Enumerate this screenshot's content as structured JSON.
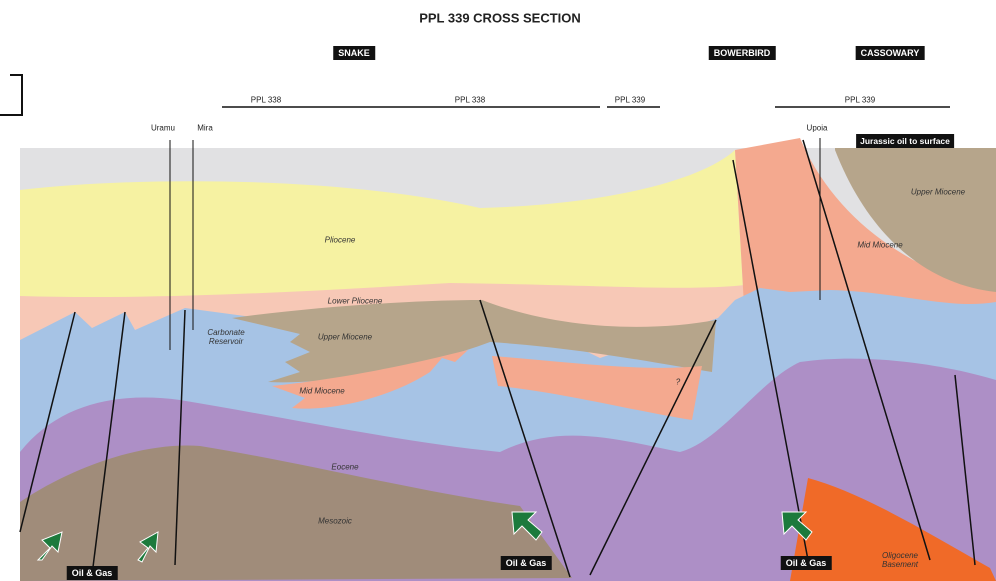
{
  "title": "PPL 339 CROSS SECTION",
  "fields": [
    "SNAKE",
    "BOWERBIRD",
    "CASSOWARY"
  ],
  "licenses": [
    "PPL 338",
    "PPL 338",
    "PPL 339",
    "PPL 339"
  ],
  "wells": [
    "Uramu",
    "Mira",
    "Upoia"
  ],
  "callout": "Jurassic oil to surface",
  "formations": [
    "Pliocene",
    "Lower Pliocene",
    "Carbonate Reservoir",
    "Upper Miocene",
    "Mid Miocene",
    "?",
    "Eocene",
    "Mesozoic",
    "Upper Miocene",
    "Mid Miocene",
    "Oligocene Basement"
  ],
  "labels": [
    "Oil & Gas",
    "Oil & Gas",
    "Oil & Gas"
  ]
}
